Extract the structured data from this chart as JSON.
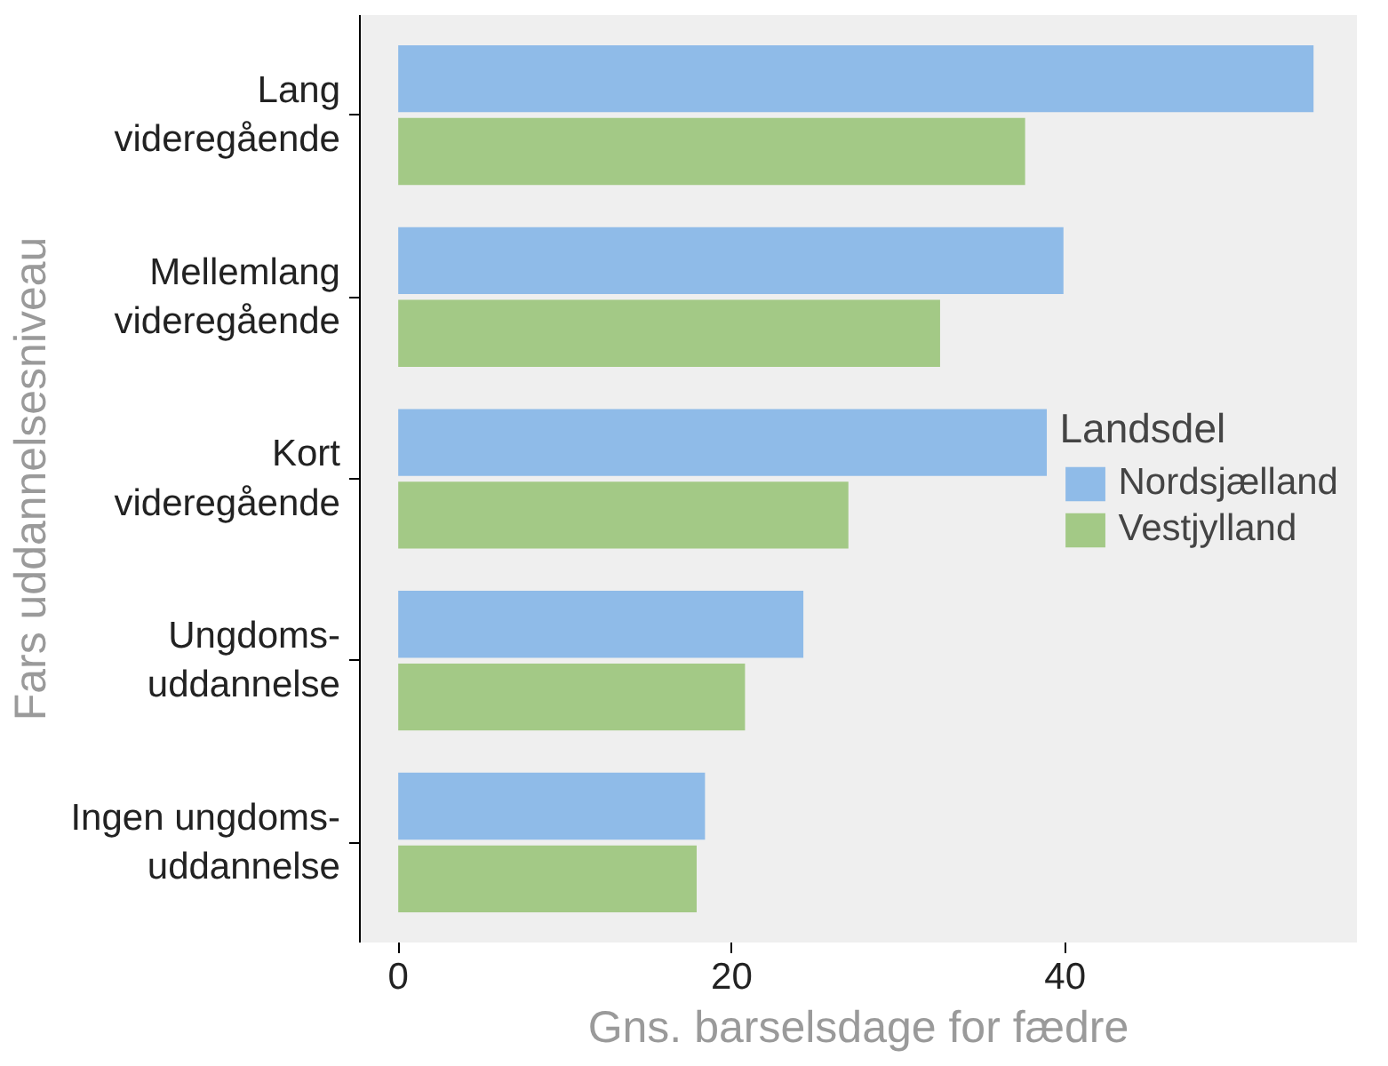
{
  "chart_data": {
    "type": "bar",
    "orientation": "horizontal",
    "categories": [
      "Lang\nvideregående",
      "Mellemlang\nvideregående",
      "Kort\nvideregående",
      "Ungdoms-\nuddannelse",
      "Ingen ungdoms-\nuddannelse"
    ],
    "series": [
      {
        "name": "Nordsjælland",
        "color": "#8fbbe8",
        "values": [
          54.9,
          39.9,
          38.9,
          24.3,
          18.4
        ]
      },
      {
        "name": "Vestjylland",
        "color": "#a3c986",
        "values": [
          37.6,
          32.5,
          27.0,
          20.8,
          17.9
        ]
      }
    ],
    "xlim": [
      -2.3,
      57.5
    ],
    "xticks": [
      0,
      20,
      40
    ],
    "xlabel": "Gns. barselsdage for fædre",
    "ylabel": "Fars uddannelsesniveau",
    "legend_title": "Landsdel",
    "legend": "right",
    "grid": false
  }
}
